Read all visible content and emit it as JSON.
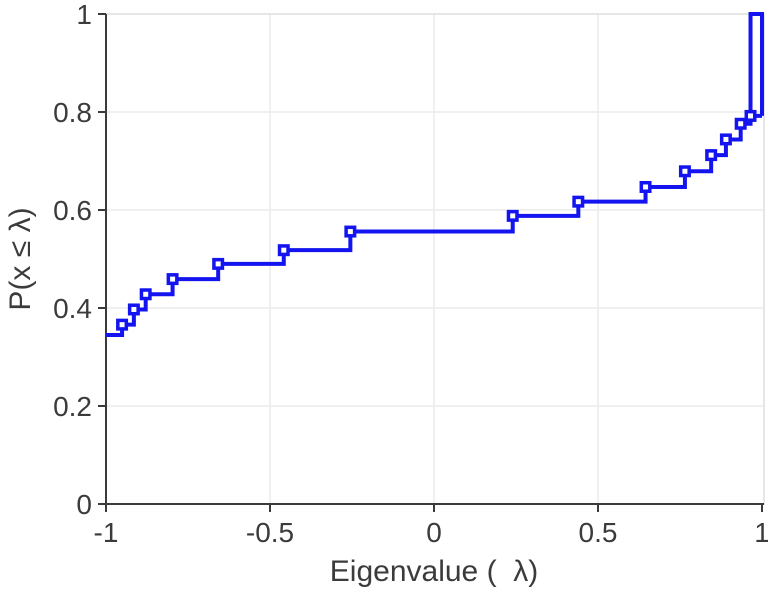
{
  "chart_data": {
    "type": "line",
    "subtype": "empirical-cdf-stairs",
    "marker": "open-square",
    "title": "",
    "xlabel": "Eigenvalue (  λ)",
    "ylabel": "P(x ≤ λ)",
    "xlim": [
      -1,
      1
    ],
    "ylim": [
      0,
      1
    ],
    "x_ticks": [
      -1,
      -0.5,
      0,
      0.5,
      1
    ],
    "x_tick_labels": [
      "-1",
      "-0.5",
      "0",
      "0.5",
      "1"
    ],
    "y_ticks": [
      0,
      0.2,
      0.4,
      0.6,
      0.8,
      1
    ],
    "y_tick_labels": [
      "0",
      "0.2",
      "0.4",
      "0.6",
      "0.8",
      "1"
    ],
    "grid": true,
    "legend_position": "none",
    "start": [
      -1,
      0.345
    ],
    "points": [
      [
        -0.951,
        0.366
      ],
      [
        -0.915,
        0.397
      ],
      [
        -0.879,
        0.428
      ],
      [
        -0.797,
        0.459
      ],
      [
        -0.658,
        0.49
      ],
      [
        -0.458,
        0.518
      ],
      [
        -0.255,
        0.556
      ],
      [
        0.24,
        0.588
      ],
      [
        0.44,
        0.617
      ],
      [
        0.645,
        0.647
      ],
      [
        0.765,
        0.679
      ],
      [
        0.845,
        0.712
      ],
      [
        0.89,
        0.744
      ],
      [
        0.935,
        0.776
      ],
      [
        0.965,
        0.792
      ]
    ],
    "end_spike": {
      "x_rise": 0.965,
      "x_fall": 1.0,
      "y_base": 0.792,
      "y_top": 1.0
    },
    "colors": {
      "line": "#1414f0",
      "marker_fill": "#ffffff",
      "axis": "#3b3b3b",
      "grid": "#ebebeb",
      "spine_light": "#dedede",
      "background": "#ffffff"
    }
  }
}
